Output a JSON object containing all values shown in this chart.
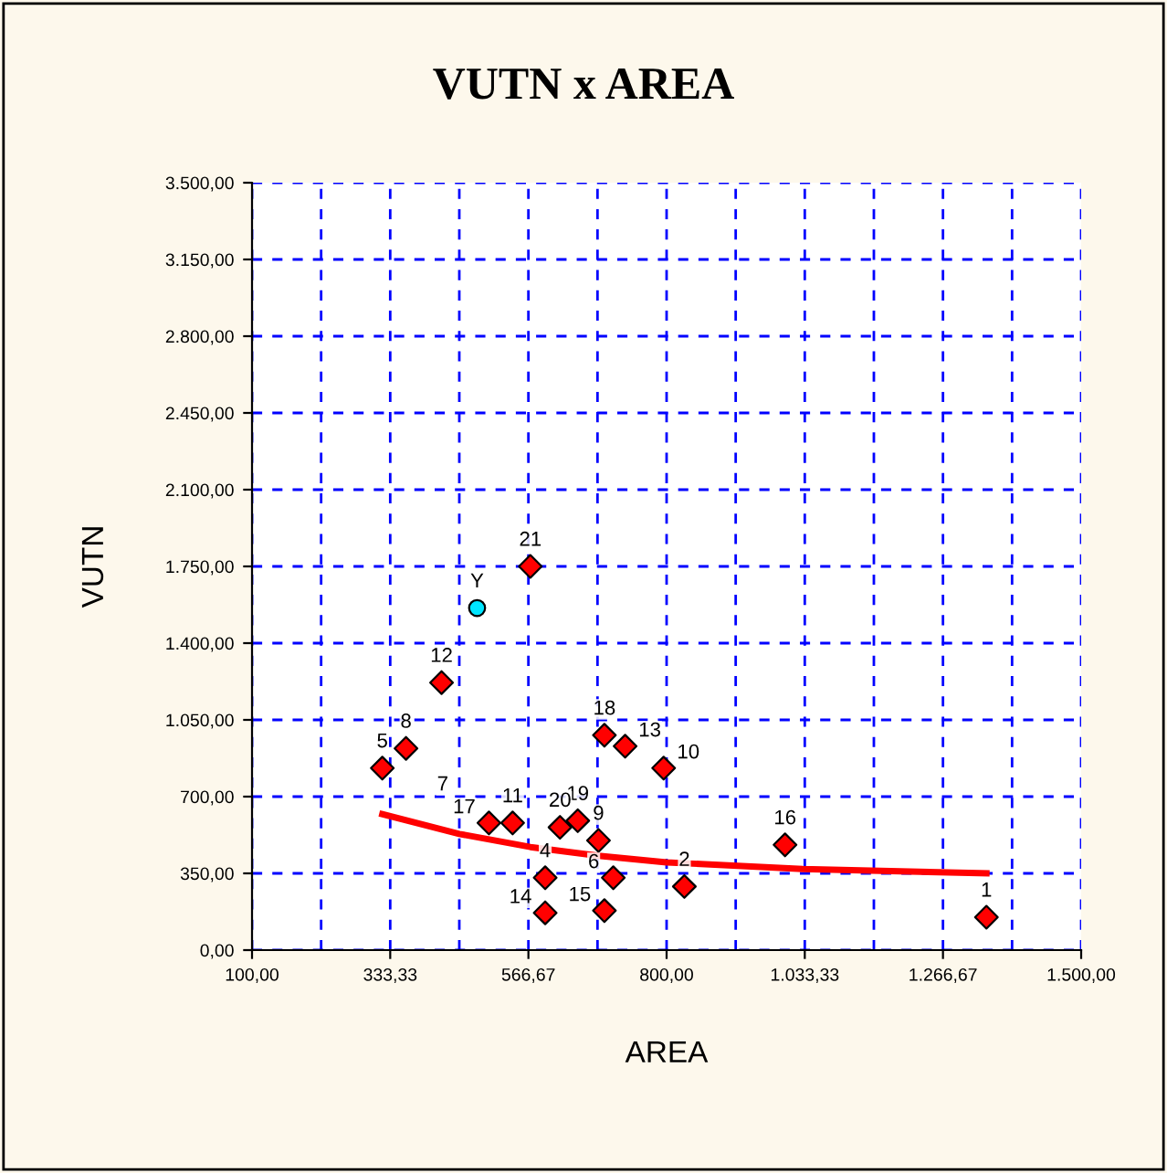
{
  "chart_data": {
    "type": "scatter",
    "title": "VUTN x AREA",
    "xlabel": "AREA",
    "ylabel": "VUTN",
    "xlim": [
      100,
      1500
    ],
    "ylim": [
      0,
      3500
    ],
    "xticks": [
      {
        "value": 100,
        "label": "100,00"
      },
      {
        "value": 216.67,
        "label": null
      },
      {
        "value": 333.33,
        "label": "333,33"
      },
      {
        "value": 450,
        "label": null
      },
      {
        "value": 566.67,
        "label": "566,67"
      },
      {
        "value": 683.33,
        "label": null
      },
      {
        "value": 800,
        "label": "800,00"
      },
      {
        "value": 916.67,
        "label": null
      },
      {
        "value": 1033.33,
        "label": "1.033,33"
      },
      {
        "value": 1150,
        "label": null
      },
      {
        "value": 1266.67,
        "label": "1.266,67"
      },
      {
        "value": 1383.33,
        "label": null
      },
      {
        "value": 1500,
        "label": "1.500,00"
      }
    ],
    "yticks": [
      {
        "value": 0,
        "label": "0,00"
      },
      {
        "value": 350,
        "label": "350,00"
      },
      {
        "value": 700,
        "label": "700,00"
      },
      {
        "value": 1050,
        "label": "1.050,00"
      },
      {
        "value": 1400,
        "label": "1.400,00"
      },
      {
        "value": 1750,
        "label": "1.750,00"
      },
      {
        "value": 2100,
        "label": "2.100,00"
      },
      {
        "value": 2450,
        "label": "2.450,00"
      },
      {
        "value": 2800,
        "label": "2.800,00"
      },
      {
        "value": 3150,
        "label": "3.150,00"
      },
      {
        "value": 3500,
        "label": "3.500,00"
      }
    ],
    "grid": true,
    "legend": false,
    "series": [
      {
        "type": "scatter",
        "color": "#ff0000",
        "marker": "diamond",
        "x": [
          1340,
          830,
          595,
          320,
          695,
          360,
          685,
          730,
          795,
          540,
          420,
          1000,
          595,
          710,
          500,
          695,
          650,
          620,
          570
        ],
        "values": [
          150,
          290,
          330,
          830,
          180,
          920,
          500,
          930,
          830,
          580,
          1220,
          480,
          170,
          330,
          580,
          980,
          590,
          560,
          1750
        ]
      },
      {
        "type": "scatter",
        "color": "#00e5ff",
        "marker": "circle",
        "x": [
          480
        ],
        "values": [
          1560
        ]
      },
      {
        "type": "line",
        "color": "#ff0000",
        "marker": "none",
        "x": [
          320,
          450,
          570,
          685,
          800,
          1030,
          1340
        ],
        "values": [
          620,
          530,
          470,
          430,
          400,
          370,
          350
        ]
      }
    ],
    "annotations": [
      {
        "text": "1",
        "x": 1340,
        "y": 150
      },
      {
        "text": "2",
        "x": 830,
        "y": 290
      },
      {
        "text": "4",
        "x": 595,
        "y": 330
      },
      {
        "text": "5",
        "x": 320,
        "y": 830
      },
      {
        "text": "15",
        "x": 695,
        "y": 180
      },
      {
        "text": "8",
        "x": 360,
        "y": 920
      },
      {
        "text": "9",
        "x": 685,
        "y": 500
      },
      {
        "text": "13",
        "x": 730,
        "y": 930
      },
      {
        "text": "10",
        "x": 795,
        "y": 830
      },
      {
        "text": "11",
        "x": 540,
        "y": 580
      },
      {
        "text": "12",
        "x": 420,
        "y": 1220
      },
      {
        "text": "16",
        "x": 1000,
        "y": 480
      },
      {
        "text": "14",
        "x": 595,
        "y": 170
      },
      {
        "text": "6",
        "x": 710,
        "y": 330
      },
      {
        "text": "17",
        "x": 500,
        "y": 580
      },
      {
        "text": "18",
        "x": 695,
        "y": 980
      },
      {
        "text": "19",
        "x": 650,
        "y": 590
      },
      {
        "text": "20",
        "x": 620,
        "y": 560
      },
      {
        "text": "21",
        "x": 570,
        "y": 1750
      },
      {
        "text": "Y",
        "x": 480,
        "y": 1560
      },
      "7"
    ]
  }
}
